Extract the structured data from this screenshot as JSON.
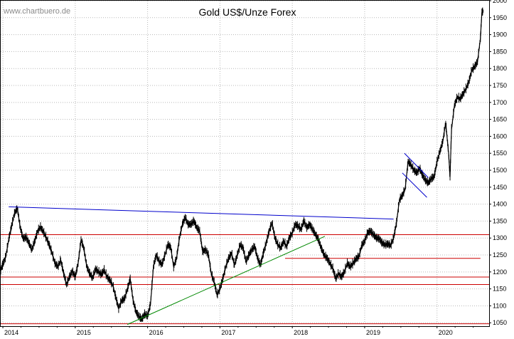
{
  "chart_data": {
    "type": "line",
    "title": "Gold US$/Unze Forex",
    "watermark": "www.chartbuero.de",
    "ylim": [
      1040,
      2000
    ],
    "y_ticks": [
      "1050",
      "1100",
      "1150",
      "1200",
      "1250",
      "1300",
      "1350",
      "1400",
      "1450",
      "1500",
      "1550",
      "1600",
      "1650",
      "1700",
      "1750",
      "1800",
      "1850",
      "1900",
      "1950",
      "2000"
    ],
    "x_ticks": [
      {
        "label": "2014",
        "t": 2014.0
      },
      {
        "label": "2015",
        "t": 2015.0
      },
      {
        "label": "2016",
        "t": 2016.0
      },
      {
        "label": "2017",
        "t": 2017.0
      },
      {
        "label": "2018",
        "t": 2018.0
      },
      {
        "label": "2019",
        "t": 2019.0
      },
      {
        "label": "2020",
        "t": 2020.0
      }
    ],
    "xlim": [
      2013.97,
      2020.72
    ],
    "grid": true,
    "series": [
      {
        "values": [
          [
            2013.97,
            1205
          ],
          [
            2014.0,
            1222
          ],
          [
            2014.04,
            1245
          ],
          [
            2014.08,
            1295
          ],
          [
            2014.12,
            1335
          ],
          [
            2014.16,
            1372
          ],
          [
            2014.2,
            1388
          ],
          [
            2014.24,
            1330
          ],
          [
            2014.28,
            1298
          ],
          [
            2014.32,
            1302
          ],
          [
            2014.36,
            1285
          ],
          [
            2014.4,
            1265
          ],
          [
            2014.44,
            1290
          ],
          [
            2014.48,
            1320
          ],
          [
            2014.52,
            1332
          ],
          [
            2014.56,
            1318
          ],
          [
            2014.6,
            1300
          ],
          [
            2014.64,
            1280
          ],
          [
            2014.68,
            1255
          ],
          [
            2014.72,
            1225
          ],
          [
            2014.76,
            1215
          ],
          [
            2014.8,
            1235
          ],
          [
            2014.84,
            1195
          ],
          [
            2014.88,
            1162
          ],
          [
            2014.92,
            1185
          ],
          [
            2014.96,
            1202
          ],
          [
            2015.0,
            1185
          ],
          [
            2015.04,
            1225
          ],
          [
            2015.08,
            1295
          ],
          [
            2015.12,
            1268
          ],
          [
            2015.16,
            1215
          ],
          [
            2015.2,
            1195
          ],
          [
            2015.24,
            1182
          ],
          [
            2015.28,
            1208
          ],
          [
            2015.32,
            1200
          ],
          [
            2015.36,
            1192
          ],
          [
            2015.4,
            1205
          ],
          [
            2015.44,
            1185
          ],
          [
            2015.48,
            1175
          ],
          [
            2015.52,
            1160
          ],
          [
            2015.56,
            1125
          ],
          [
            2015.6,
            1092
          ],
          [
            2015.64,
            1115
          ],
          [
            2015.68,
            1120
          ],
          [
            2015.72,
            1148
          ],
          [
            2015.76,
            1180
          ],
          [
            2015.8,
            1115
          ],
          [
            2015.84,
            1082
          ],
          [
            2015.88,
            1068
          ],
          [
            2015.92,
            1060
          ],
          [
            2015.96,
            1075
          ],
          [
            2016.0,
            1070
          ],
          [
            2016.04,
            1105
          ],
          [
            2016.08,
            1215
          ],
          [
            2016.12,
            1250
          ],
          [
            2016.16,
            1230
          ],
          [
            2016.2,
            1222
          ],
          [
            2016.24,
            1250
          ],
          [
            2016.28,
            1280
          ],
          [
            2016.32,
            1272
          ],
          [
            2016.36,
            1215
          ],
          [
            2016.4,
            1240
          ],
          [
            2016.44,
            1300
          ],
          [
            2016.48,
            1340
          ],
          [
            2016.52,
            1360
          ],
          [
            2016.56,
            1340
          ],
          [
            2016.6,
            1340
          ],
          [
            2016.64,
            1350
          ],
          [
            2016.68,
            1330
          ],
          [
            2016.72,
            1320
          ],
          [
            2016.76,
            1260
          ],
          [
            2016.8,
            1265
          ],
          [
            2016.84,
            1250
          ],
          [
            2016.88,
            1195
          ],
          [
            2016.92,
            1170
          ],
          [
            2016.96,
            1132
          ],
          [
            2017.0,
            1150
          ],
          [
            2017.04,
            1180
          ],
          [
            2017.08,
            1215
          ],
          [
            2017.12,
            1240
          ],
          [
            2017.16,
            1255
          ],
          [
            2017.2,
            1220
          ],
          [
            2017.24,
            1250
          ],
          [
            2017.28,
            1280
          ],
          [
            2017.32,
            1270
          ],
          [
            2017.36,
            1230
          ],
          [
            2017.4,
            1250
          ],
          [
            2017.44,
            1265
          ],
          [
            2017.48,
            1275
          ],
          [
            2017.52,
            1240
          ],
          [
            2017.56,
            1220
          ],
          [
            2017.6,
            1255
          ],
          [
            2017.64,
            1285
          ],
          [
            2017.68,
            1320
          ],
          [
            2017.72,
            1345
          ],
          [
            2017.76,
            1300
          ],
          [
            2017.8,
            1280
          ],
          [
            2017.84,
            1270
          ],
          [
            2017.88,
            1290
          ],
          [
            2017.92,
            1275
          ],
          [
            2017.96,
            1300
          ],
          [
            2018.0,
            1315
          ],
          [
            2018.04,
            1340
          ],
          [
            2018.08,
            1335
          ],
          [
            2018.12,
            1325
          ],
          [
            2018.16,
            1350
          ],
          [
            2018.2,
            1330
          ],
          [
            2018.24,
            1340
          ],
          [
            2018.28,
            1325
          ],
          [
            2018.32,
            1310
          ],
          [
            2018.36,
            1295
          ],
          [
            2018.4,
            1270
          ],
          [
            2018.44,
            1250
          ],
          [
            2018.48,
            1240
          ],
          [
            2018.52,
            1225
          ],
          [
            2018.56,
            1210
          ],
          [
            2018.6,
            1180
          ],
          [
            2018.64,
            1195
          ],
          [
            2018.68,
            1185
          ],
          [
            2018.72,
            1200
          ],
          [
            2018.76,
            1225
          ],
          [
            2018.8,
            1215
          ],
          [
            2018.84,
            1225
          ],
          [
            2018.88,
            1238
          ],
          [
            2018.92,
            1245
          ],
          [
            2018.96,
            1278
          ],
          [
            2019.0,
            1290
          ],
          [
            2019.04,
            1315
          ],
          [
            2019.08,
            1320
          ],
          [
            2019.12,
            1310
          ],
          [
            2019.16,
            1300
          ],
          [
            2019.2,
            1298
          ],
          [
            2019.24,
            1285
          ],
          [
            2019.28,
            1280
          ],
          [
            2019.32,
            1282
          ],
          [
            2019.36,
            1278
          ],
          [
            2019.4,
            1300
          ],
          [
            2019.44,
            1345
          ],
          [
            2019.48,
            1412
          ],
          [
            2019.52,
            1425
          ],
          [
            2019.56,
            1445
          ],
          [
            2019.6,
            1525
          ],
          [
            2019.64,
            1515
          ],
          [
            2019.68,
            1500
          ],
          [
            2019.72,
            1492
          ],
          [
            2019.76,
            1505
          ],
          [
            2019.8,
            1485
          ],
          [
            2019.84,
            1470
          ],
          [
            2019.88,
            1462
          ],
          [
            2019.92,
            1475
          ],
          [
            2019.96,
            1480
          ],
          [
            2020.0,
            1525
          ],
          [
            2020.04,
            1555
          ],
          [
            2020.08,
            1585
          ],
          [
            2020.12,
            1640
          ],
          [
            2020.16,
            1550
          ],
          [
            2020.18,
            1480
          ],
          [
            2020.2,
            1620
          ],
          [
            2020.24,
            1690
          ],
          [
            2020.28,
            1715
          ],
          [
            2020.32,
            1710
          ],
          [
            2020.36,
            1725
          ],
          [
            2020.4,
            1740
          ],
          [
            2020.44,
            1760
          ],
          [
            2020.48,
            1795
          ],
          [
            2020.52,
            1805
          ],
          [
            2020.56,
            1820
          ],
          [
            2020.6,
            1890
          ],
          [
            2020.62,
            1965
          ],
          [
            2020.64,
            1970
          ]
        ]
      }
    ],
    "trendlines": [
      {
        "color": "#0000cc",
        "from": [
          2014.08,
          1392
        ],
        "to": [
          2019.4,
          1356
        ]
      },
      {
        "color": "#0000cc",
        "from": [
          2019.55,
          1550
        ],
        "to": [
          2019.88,
          1478
        ]
      },
      {
        "color": "#0000cc",
        "from": [
          2019.52,
          1492
        ],
        "to": [
          2019.86,
          1420
        ]
      },
      {
        "color": "#008800",
        "from": [
          2015.72,
          1045
        ],
        "to": [
          2018.45,
          1305
        ]
      }
    ],
    "hlines": [
      {
        "color": "#cc0000",
        "y": 1310,
        "from": 2013.97,
        "to": 2020.72
      },
      {
        "color": "#cc0000",
        "y": 1185,
        "from": 2013.97,
        "to": 2020.72
      },
      {
        "color": "#cc0000",
        "y": 1163,
        "from": 2013.97,
        "to": 2020.72
      },
      {
        "color": "#cc0000",
        "y": 1047,
        "from": 2013.97,
        "to": 2020.72
      },
      {
        "color": "#cc0000",
        "y": 1240,
        "from": 2017.9,
        "to": 2020.6
      }
    ]
  }
}
